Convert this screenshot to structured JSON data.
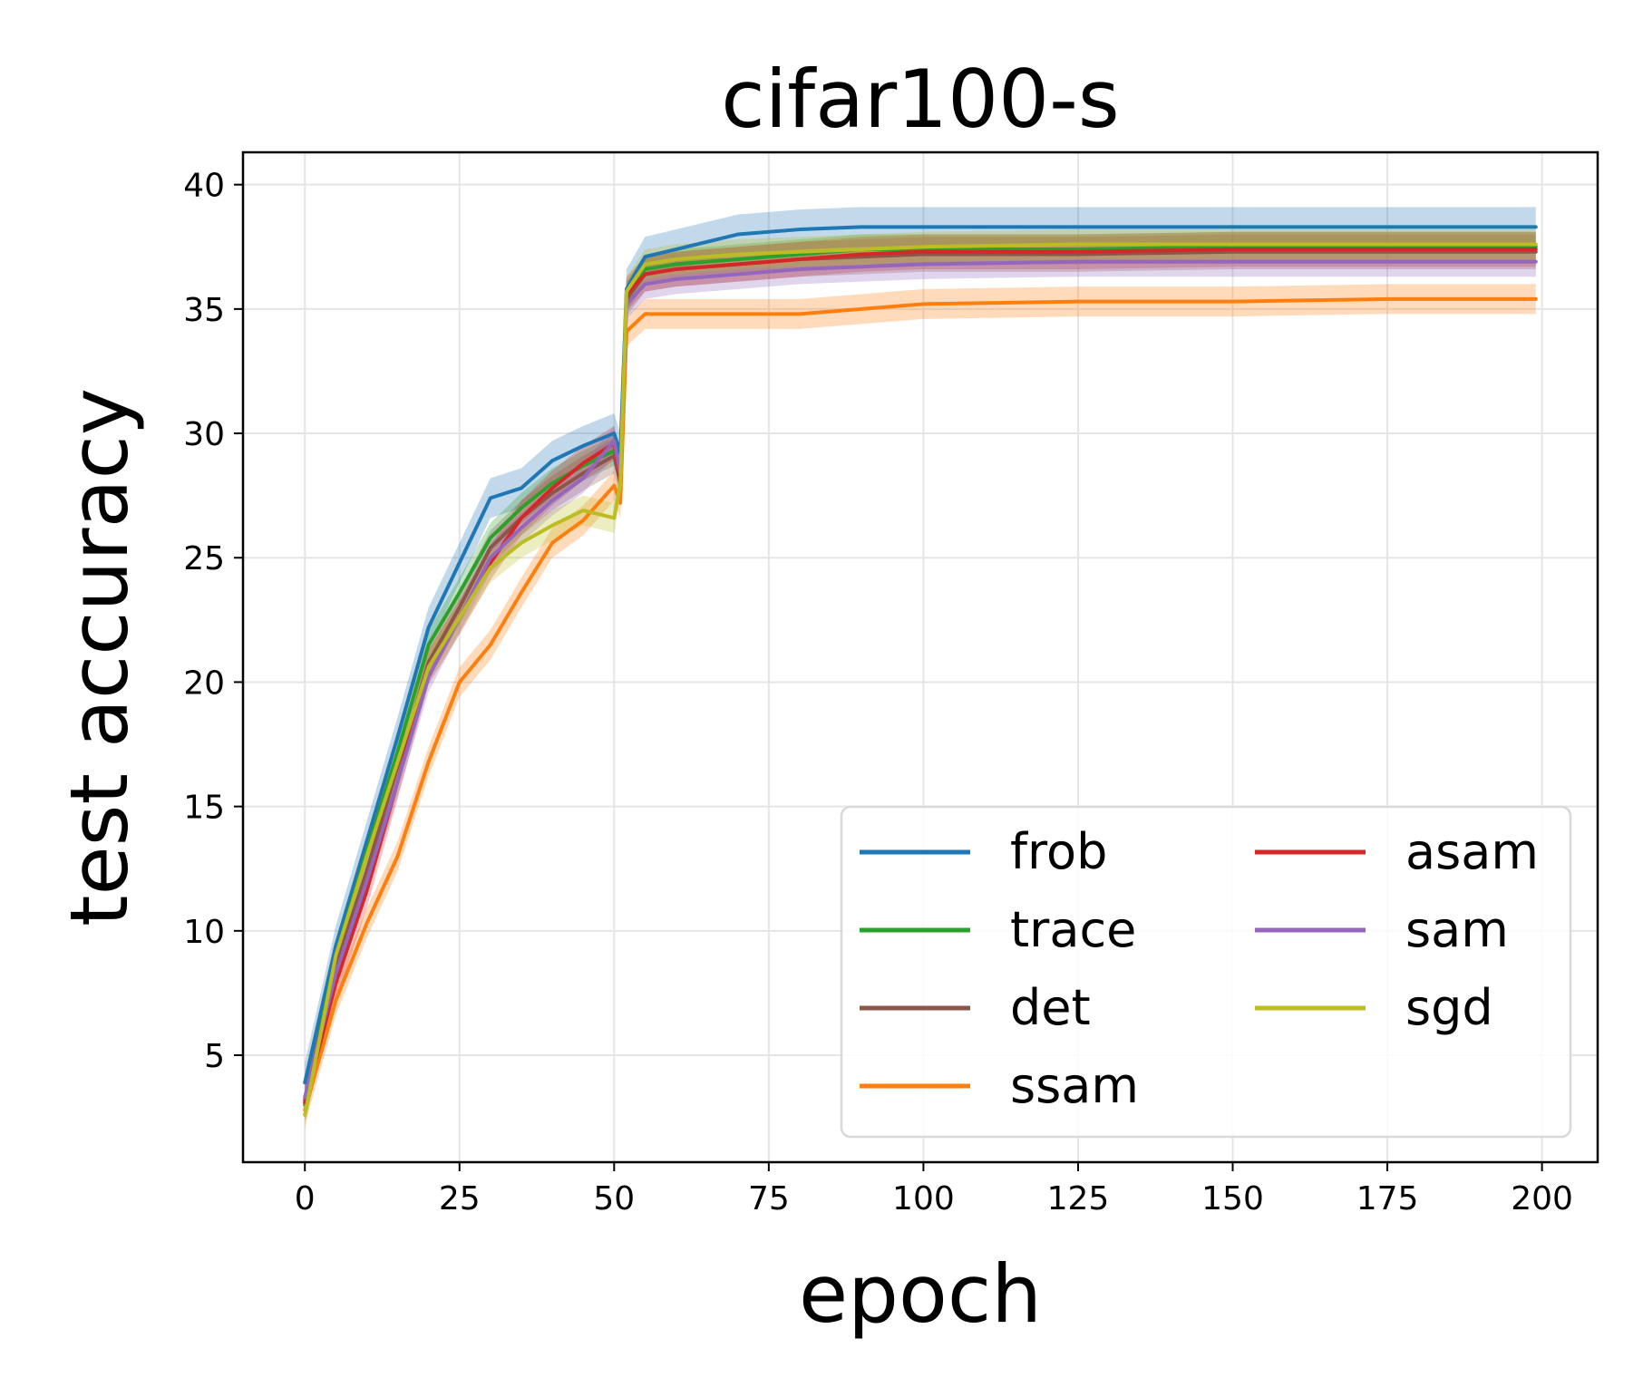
{
  "chart_data": {
    "type": "line",
    "title": "cifar100-s",
    "xlabel": "epoch",
    "ylabel": "test accuracy",
    "xlim": [
      -10,
      209
    ],
    "ylim": [
      0.7,
      41.3
    ],
    "xticks": [
      0,
      25,
      50,
      75,
      100,
      125,
      150,
      175,
      200
    ],
    "yticks": [
      5,
      10,
      15,
      20,
      25,
      30,
      35,
      40
    ],
    "grid": true,
    "legend_position": "lower right",
    "legend_columns": 2,
    "series": [
      {
        "name": "frob",
        "color": "#1f77b4",
        "points": [
          [
            0,
            3.9
          ],
          [
            5,
            9.4
          ],
          [
            10,
            13.6
          ],
          [
            15,
            17.8
          ],
          [
            20,
            22.2
          ],
          [
            25,
            24.8
          ],
          [
            30,
            27.4
          ],
          [
            35,
            27.8
          ],
          [
            40,
            28.9
          ],
          [
            45,
            29.5
          ],
          [
            50,
            30.0
          ],
          [
            51,
            29.2
          ],
          [
            52,
            35.8
          ],
          [
            55,
            37.1
          ],
          [
            60,
            37.4
          ],
          [
            70,
            38.0
          ],
          [
            80,
            38.2
          ],
          [
            90,
            38.3
          ],
          [
            100,
            38.3
          ],
          [
            125,
            38.3
          ],
          [
            150,
            38.3
          ],
          [
            175,
            38.3
          ],
          [
            199,
            38.3
          ]
        ],
        "band": 0.8
      },
      {
        "name": "trace",
        "color": "#2ca02c",
        "points": [
          [
            0,
            3.0
          ],
          [
            5,
            9.0
          ],
          [
            10,
            13.2
          ],
          [
            15,
            17.2
          ],
          [
            20,
            21.5
          ],
          [
            25,
            23.6
          ],
          [
            30,
            25.8
          ],
          [
            35,
            27.0
          ],
          [
            40,
            28.0
          ],
          [
            45,
            28.7
          ],
          [
            50,
            29.3
          ],
          [
            51,
            28.2
          ],
          [
            52,
            35.5
          ],
          [
            55,
            36.6
          ],
          [
            60,
            36.8
          ],
          [
            70,
            37.0
          ],
          [
            80,
            37.2
          ],
          [
            90,
            37.4
          ],
          [
            100,
            37.4
          ],
          [
            125,
            37.4
          ],
          [
            150,
            37.5
          ],
          [
            175,
            37.5
          ],
          [
            199,
            37.5
          ]
        ],
        "band": 0.6
      },
      {
        "name": "det",
        "color": "#8c564b",
        "points": [
          [
            0,
            3.2
          ],
          [
            5,
            8.6
          ],
          [
            10,
            12.4
          ],
          [
            15,
            16.6
          ],
          [
            20,
            20.8
          ],
          [
            25,
            23.0
          ],
          [
            30,
            25.4
          ],
          [
            35,
            26.6
          ],
          [
            40,
            27.6
          ],
          [
            45,
            28.4
          ],
          [
            50,
            29.1
          ],
          [
            51,
            28.0
          ],
          [
            52,
            35.4
          ],
          [
            55,
            36.4
          ],
          [
            60,
            36.6
          ],
          [
            70,
            36.8
          ],
          [
            80,
            37.0
          ],
          [
            90,
            37.1
          ],
          [
            100,
            37.2
          ],
          [
            125,
            37.2
          ],
          [
            150,
            37.3
          ],
          [
            175,
            37.3
          ],
          [
            199,
            37.3
          ]
        ],
        "band": 0.7
      },
      {
        "name": "ssam",
        "color": "#ff7f0e",
        "points": [
          [
            0,
            2.8
          ],
          [
            5,
            7.2
          ],
          [
            10,
            10.3
          ],
          [
            15,
            13.0
          ],
          [
            20,
            16.8
          ],
          [
            25,
            20.0
          ],
          [
            30,
            21.5
          ],
          [
            35,
            23.6
          ],
          [
            40,
            25.6
          ],
          [
            45,
            26.5
          ],
          [
            50,
            27.9
          ],
          [
            51,
            27.2
          ],
          [
            52,
            34.1
          ],
          [
            55,
            34.8
          ],
          [
            60,
            34.8
          ],
          [
            70,
            34.8
          ],
          [
            80,
            34.8
          ],
          [
            90,
            35.0
          ],
          [
            100,
            35.2
          ],
          [
            125,
            35.3
          ],
          [
            150,
            35.3
          ],
          [
            175,
            35.4
          ],
          [
            199,
            35.4
          ]
        ],
        "band": 0.6
      },
      {
        "name": "asam",
        "color": "#d62728",
        "points": [
          [
            0,
            3.1
          ],
          [
            5,
            7.9
          ],
          [
            10,
            11.6
          ],
          [
            15,
            16.0
          ],
          [
            20,
            20.6
          ],
          [
            25,
            22.6
          ],
          [
            30,
            24.8
          ],
          [
            35,
            26.6
          ],
          [
            40,
            27.8
          ],
          [
            45,
            28.8
          ],
          [
            50,
            29.6
          ],
          [
            51,
            28.1
          ],
          [
            52,
            35.6
          ],
          [
            55,
            36.4
          ],
          [
            60,
            36.6
          ],
          [
            70,
            36.8
          ],
          [
            80,
            37.0
          ],
          [
            90,
            37.2
          ],
          [
            100,
            37.3
          ],
          [
            125,
            37.3
          ],
          [
            150,
            37.4
          ],
          [
            175,
            37.4
          ],
          [
            199,
            37.4
          ]
        ],
        "band": 0.7
      },
      {
        "name": "sam",
        "color": "#9467bd",
        "points": [
          [
            0,
            3.3
          ],
          [
            5,
            8.3
          ],
          [
            10,
            12.0
          ],
          [
            15,
            16.0
          ],
          [
            20,
            20.2
          ],
          [
            25,
            22.6
          ],
          [
            30,
            25.0
          ],
          [
            35,
            26.2
          ],
          [
            40,
            27.3
          ],
          [
            45,
            28.2
          ],
          [
            50,
            29.7
          ],
          [
            51,
            28.4
          ],
          [
            52,
            35.2
          ],
          [
            55,
            36.0
          ],
          [
            60,
            36.2
          ],
          [
            70,
            36.4
          ],
          [
            80,
            36.6
          ],
          [
            90,
            36.7
          ],
          [
            100,
            36.8
          ],
          [
            125,
            36.9
          ],
          [
            150,
            36.9
          ],
          [
            175,
            36.9
          ],
          [
            199,
            36.9
          ]
        ],
        "band": 0.6
      },
      {
        "name": "sgd",
        "color": "#bcbd22",
        "points": [
          [
            0,
            2.6
          ],
          [
            5,
            9.0
          ],
          [
            10,
            13.0
          ],
          [
            15,
            16.8
          ],
          [
            20,
            20.6
          ],
          [
            25,
            22.6
          ],
          [
            30,
            24.6
          ],
          [
            35,
            25.6
          ],
          [
            40,
            26.3
          ],
          [
            45,
            26.9
          ],
          [
            50,
            26.6
          ],
          [
            51,
            28.0
          ],
          [
            52,
            35.7
          ],
          [
            55,
            36.8
          ],
          [
            60,
            37.0
          ],
          [
            70,
            37.2
          ],
          [
            80,
            37.3
          ],
          [
            90,
            37.4
          ],
          [
            100,
            37.5
          ],
          [
            125,
            37.6
          ],
          [
            150,
            37.6
          ],
          [
            175,
            37.6
          ],
          [
            199,
            37.6
          ]
        ],
        "band": 0.6
      }
    ]
  }
}
